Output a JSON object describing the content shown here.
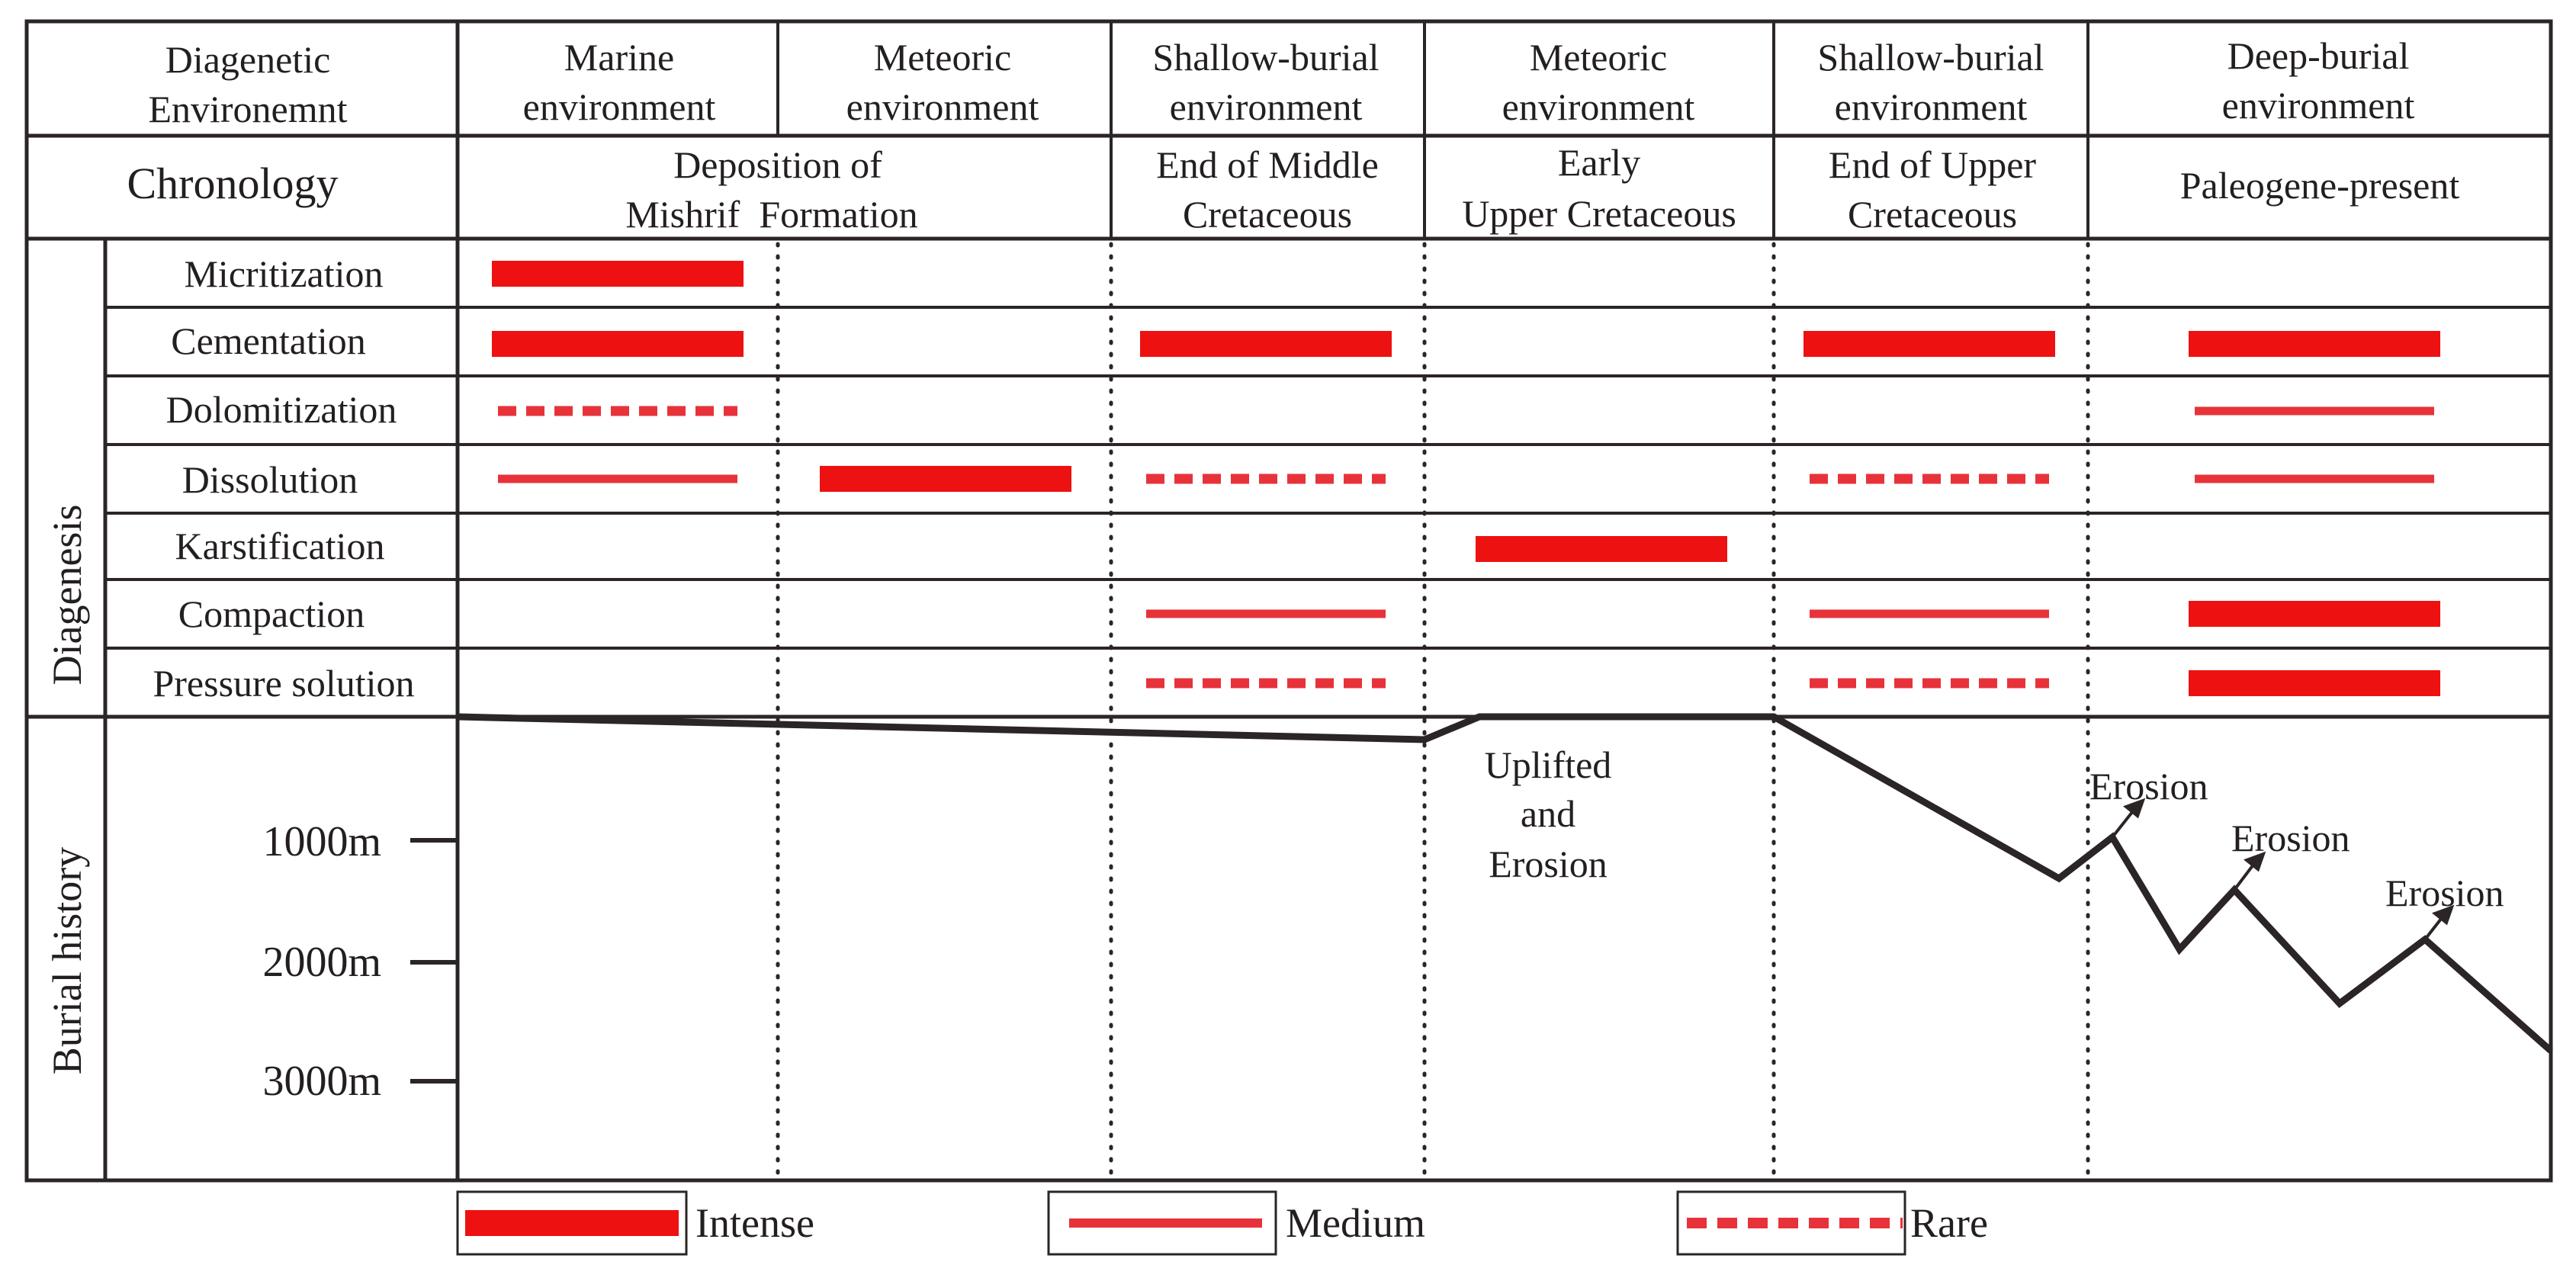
{
  "header": {
    "diagenetic_label_line1": "Diagenetic",
    "diagenetic_label_line2": "Environemnt",
    "chronology_label": "Chronology",
    "environments": [
      {
        "line1": "Marine",
        "line2": "environment"
      },
      {
        "line1": "Meteoric",
        "line2": "environment"
      },
      {
        "line1": "Shallow-burial",
        "line2": "environment"
      },
      {
        "line1": "Meteoric",
        "line2": "environment"
      },
      {
        "line1": "Shallow-burial",
        "line2": "environment"
      },
      {
        "line1": "Deep-burial",
        "line2": "environment"
      }
    ],
    "chronology": [
      {
        "line1": "Deposition of",
        "line2": "Mishrif  Formation"
      },
      {
        "line1": "End of Middle",
        "line2": "Cretaceous"
      },
      {
        "line1": "Early",
        "line2": "Upper Cretaceous"
      },
      {
        "line1": "End of Upper",
        "line2": "Cretaceous"
      },
      {
        "line1": "Paleogene-present",
        "line2": ""
      }
    ]
  },
  "diagenesis": {
    "section_label": "Diagenesis",
    "processes": [
      {
        "name": "Micritization",
        "marks": [
          {
            "col": 0,
            "intensity": "intense"
          }
        ]
      },
      {
        "name": "Cementation",
        "marks": [
          {
            "col": 0,
            "intensity": "intense"
          },
          {
            "col": 2,
            "intensity": "intense"
          },
          {
            "col": 4,
            "intensity": "intense"
          },
          {
            "col": 5,
            "intensity": "intense"
          }
        ]
      },
      {
        "name": "Dolomitization",
        "marks": [
          {
            "col": 0,
            "intensity": "rare"
          },
          {
            "col": 5,
            "intensity": "medium"
          }
        ]
      },
      {
        "name": "Dissolution",
        "marks": [
          {
            "col": 0,
            "intensity": "medium"
          },
          {
            "col": 1,
            "intensity": "intense"
          },
          {
            "col": 2,
            "intensity": "rare"
          },
          {
            "col": 4,
            "intensity": "rare"
          },
          {
            "col": 5,
            "intensity": "medium"
          }
        ]
      },
      {
        "name": "Karstification",
        "marks": [
          {
            "col": 3,
            "intensity": "intense"
          }
        ]
      },
      {
        "name": "Compaction",
        "marks": [
          {
            "col": 2,
            "intensity": "medium"
          },
          {
            "col": 4,
            "intensity": "medium"
          },
          {
            "col": 5,
            "intensity": "intense"
          }
        ]
      },
      {
        "name": "Pressure solution",
        "marks": [
          {
            "col": 2,
            "intensity": "rare"
          },
          {
            "col": 4,
            "intensity": "rare"
          },
          {
            "col": 5,
            "intensity": "intense"
          }
        ]
      }
    ]
  },
  "burial": {
    "section_label": "Burial history",
    "depth_ticks": [
      {
        "label": "1000m",
        "depth": 1000
      },
      {
        "label": "2000m",
        "depth": 2000
      },
      {
        "label": "3000m",
        "depth": 3000
      }
    ],
    "uplift_annotation": {
      "line1": "Uplifted",
      "line2": "and",
      "line3": "Erosion"
    },
    "erosion_label": "Erosion"
  },
  "legend": {
    "intense": "Intense",
    "medium": "Medium",
    "rare": "Rare"
  },
  "colors": {
    "intense": "#ee1111",
    "medium": "#e8323a",
    "rare": "#e8323a",
    "line": "#2b2526"
  }
}
